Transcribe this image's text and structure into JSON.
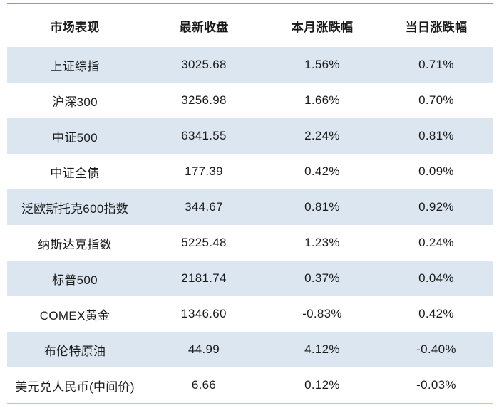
{
  "table": {
    "columns": [
      "市场表现",
      "最新收盘",
      "本月涨跌幅",
      "当日涨跌幅"
    ],
    "rows": [
      [
        "上证综指",
        "3025.68",
        "1.56%",
        "0.71%"
      ],
      [
        "沪深300",
        "3256.98",
        "1.66%",
        "0.70%"
      ],
      [
        "中证500",
        "6341.55",
        "2.24%",
        "0.81%"
      ],
      [
        "中证全债",
        "177.39",
        "0.42%",
        "0.09%"
      ],
      [
        "泛欧斯托克600指数",
        "344.67",
        "0.81%",
        "0.92%"
      ],
      [
        "纳斯达克指数",
        "5225.48",
        "1.23%",
        "0.24%"
      ],
      [
        "标普500",
        "2181.74",
        "0.37%",
        "0.04%"
      ],
      [
        "COMEX黄金",
        "1346.60",
        "-0.83%",
        "0.42%"
      ],
      [
        "布伦特原油",
        "44.99",
        "4.12%",
        "-0.40%"
      ],
      [
        "美元兑人民币(中间价)",
        "6.66",
        "0.12%",
        "-0.03%"
      ]
    ]
  },
  "colors": {
    "top_border": "#7e9cca",
    "bottom_border": "#b5c8e0",
    "row_shade": "#dce6f1",
    "text": "#1a1a1a"
  }
}
